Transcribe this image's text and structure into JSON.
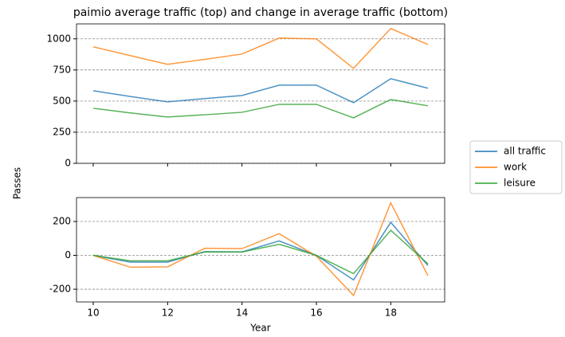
{
  "chart_data": [
    {
      "type": "line",
      "title": "paimio average traffic (top) and change in average traffic (bottom)",
      "ylabel": "Passes",
      "x": [
        10,
        11,
        12,
        13,
        14,
        15,
        16,
        17,
        18,
        19
      ],
      "xlim": [
        9.55,
        19.45
      ],
      "xticks": [
        10,
        12,
        14,
        16,
        18
      ],
      "ylim": [
        0,
        1120
      ],
      "yticks": [
        0,
        250,
        500,
        750,
        1000
      ],
      "grid": true,
      "legend": "right",
      "series": [
        {
          "name": "all traffic",
          "color": "#1f77b4",
          "values": [
            583,
            537,
            494,
            520,
            545,
            628,
            628,
            487,
            680,
            603
          ]
        },
        {
          "name": "work",
          "color": "#ff7f0e",
          "values": [
            936,
            865,
            795,
            835,
            878,
            1006,
            1000,
            763,
            1083,
            955
          ]
        },
        {
          "name": "leisure",
          "color": "#2ca02c",
          "values": [
            442,
            405,
            372,
            390,
            410,
            474,
            474,
            365,
            513,
            462
          ]
        }
      ]
    },
    {
      "type": "line",
      "xlabel": "Year",
      "x": [
        10,
        11,
        12,
        13,
        14,
        15,
        16,
        17,
        18,
        19
      ],
      "xlim": [
        9.55,
        19.45
      ],
      "xticks": [
        10,
        12,
        14,
        16,
        18
      ],
      "ylim": [
        -275,
        341
      ],
      "yticks": [
        -200,
        0,
        200
      ],
      "grid": true,
      "series": [
        {
          "color": "#1f77b4",
          "values": [
            0,
            -40,
            -40,
            22,
            20,
            85,
            0,
            -145,
            195,
            -60
          ]
        },
        {
          "color": "#ff7f0e",
          "values": [
            0,
            -70,
            -68,
            42,
            40,
            128,
            -5,
            -237,
            310,
            -120
          ]
        },
        {
          "color": "#2ca02c",
          "values": [
            0,
            -32,
            -32,
            20,
            20,
            65,
            0,
            -108,
            148,
            -50
          ]
        }
      ]
    }
  ]
}
